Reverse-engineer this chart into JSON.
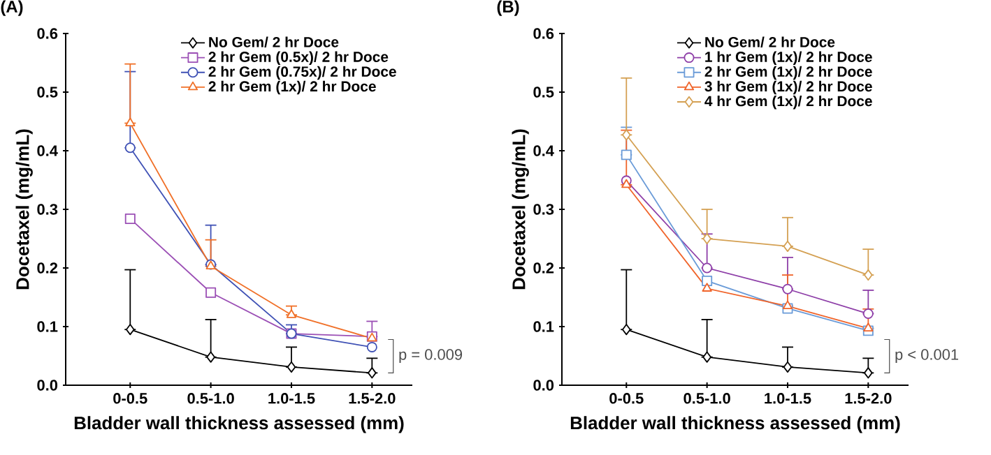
{
  "chart_data": [
    {
      "type": "line",
      "title": "(A)",
      "xlabel": "Bladder wall thickness assessed (mm)",
      "ylabel": "Docetaxel (mg/mL)",
      "categories": [
        "0-0.5",
        "0.5-1.0",
        "1.0-1.5",
        "1.5-2.0"
      ],
      "ylim": [
        0,
        0.6
      ],
      "yticks": [
        {
          "value": 0,
          "label": "0.0"
        },
        0.1,
        0.2,
        0.3,
        0.4,
        0.5,
        0.6
      ],
      "grid": false,
      "legend": "top right",
      "annotations": [
        "p = 0.009"
      ],
      "series": [
        {
          "name": "No Gem/ 2 hr Doce",
          "color": "#000000",
          "marker": "diamond",
          "values": [
            0.095,
            0.048,
            0.031,
            0.021
          ],
          "errors": [
            [
              0.095,
              0.197
            ],
            [
              0.048,
              0.112
            ],
            [
              0.031,
              0.065
            ],
            [
              0.021,
              0.046
            ]
          ]
        },
        {
          "name": "2 hr Gem (0.5x)/ 2 hr Doce",
          "color": "#9b4fb5",
          "marker": "square",
          "values": [
            0.284,
            0.158,
            0.088,
            0.083
          ],
          "errors": [
            null,
            null,
            null,
            [
              0.083,
              0.109
            ]
          ]
        },
        {
          "name": "2 hr Gem (0.75x)/ 2 hr Doce",
          "color": "#3f51b5",
          "marker": "circle",
          "values": [
            0.405,
            0.206,
            0.088,
            0.065
          ],
          "errors": [
            [
              0.405,
              0.535
            ],
            [
              0.206,
              0.273
            ],
            [
              0.088,
              0.103
            ],
            null
          ]
        },
        {
          "name": "2 hr Gem (1x)/ 2 hr Doce",
          "color": "#f07028",
          "marker": "triangle",
          "values": [
            0.447,
            0.203,
            0.12,
            0.08
          ],
          "errors": [
            [
              0.447,
              0.548
            ],
            [
              0.203,
              0.248
            ],
            [
              0.12,
              0.135
            ],
            null
          ]
        }
      ]
    },
    {
      "type": "line",
      "title": "(B)",
      "xlabel": "Bladder wall thickness assessed (mm)",
      "ylabel": "Docetaxel (mg/mL)",
      "categories": [
        "0-0.5",
        "0.5-1.0",
        "1.0-1.5",
        "1.5-2.0"
      ],
      "ylim": [
        0,
        0.6
      ],
      "yticks": [
        {
          "value": 0,
          "label": "0.0"
        },
        0.1,
        0.2,
        0.3,
        0.4,
        0.5,
        0.6
      ],
      "grid": false,
      "legend": "top right",
      "annotations": [
        "p < 0.001"
      ],
      "series": [
        {
          "name": "No Gem/ 2 hr Doce",
          "color": "#000000",
          "marker": "diamond",
          "values": [
            0.095,
            0.048,
            0.031,
            0.021
          ],
          "errors": [
            [
              0.095,
              0.197
            ],
            [
              0.048,
              0.112
            ],
            [
              0.031,
              0.065
            ],
            [
              0.021,
              0.046
            ]
          ]
        },
        {
          "name": "1 hr Gem (1x)/ 2 hr Doce",
          "color": "#8e3fa8",
          "marker": "circle",
          "values": [
            0.349,
            0.2,
            0.164,
            0.122
          ],
          "errors": [
            null,
            [
              0.2,
              0.258
            ],
            [
              0.164,
              0.218
            ],
            [
              0.122,
              0.162
            ]
          ]
        },
        {
          "name": "2 hr Gem (1x)/ 2 hr Doce",
          "color": "#6a9bd8",
          "marker": "square",
          "values": [
            0.393,
            0.178,
            0.131,
            0.093
          ],
          "errors": [
            [
              0.393,
              0.44
            ],
            null,
            null,
            null
          ]
        },
        {
          "name": "3 hr Gem (1x)/ 2 hr Doce",
          "color": "#f0642a",
          "marker": "triangle",
          "values": [
            0.342,
            0.165,
            0.135,
            0.097
          ],
          "errors": [
            [
              0.342,
              0.435
            ],
            null,
            [
              0.135,
              0.188
            ],
            [
              0.097,
              0.13
            ]
          ]
        },
        {
          "name": "4 hr Gem (1x)/ 2 hr Doce",
          "color": "#d4a052",
          "marker": "diamond",
          "values": [
            0.427,
            0.25,
            0.237,
            0.188
          ],
          "errors": [
            [
              0.427,
              0.524
            ],
            [
              0.25,
              0.3
            ],
            [
              0.237,
              0.286
            ],
            [
              0.188,
              0.232
            ]
          ]
        }
      ]
    }
  ]
}
